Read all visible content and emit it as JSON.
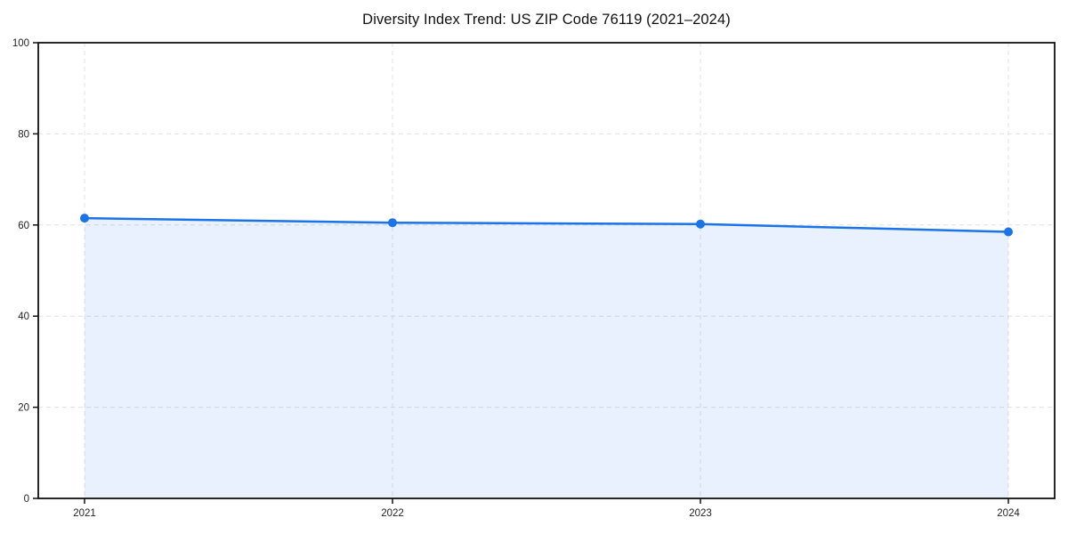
{
  "chart_data": {
    "type": "area",
    "title": "Diversity Index Trend: US ZIP Code 76119 (2021–2024)",
    "x": [
      "2021",
      "2022",
      "2023",
      "2024"
    ],
    "series": [
      {
        "name": "Diversity Index",
        "values": [
          61.5,
          60.5,
          60.2,
          58.5
        ]
      }
    ],
    "xlabel": "",
    "ylabel": "",
    "ylim": [
      0,
      100
    ],
    "yticks": [
      0,
      20,
      40,
      60,
      80,
      100
    ],
    "grid": true,
    "grid_style": "dashed",
    "legend_position": "none",
    "colors": {
      "line": "#1a73e8",
      "marker": "#1a73e8",
      "fill": "rgba(26,115,232,0.10)",
      "gridline": "#e0e0e0",
      "frame": "#111111",
      "tick_label": "#222222",
      "background": "#ffffff"
    }
  }
}
